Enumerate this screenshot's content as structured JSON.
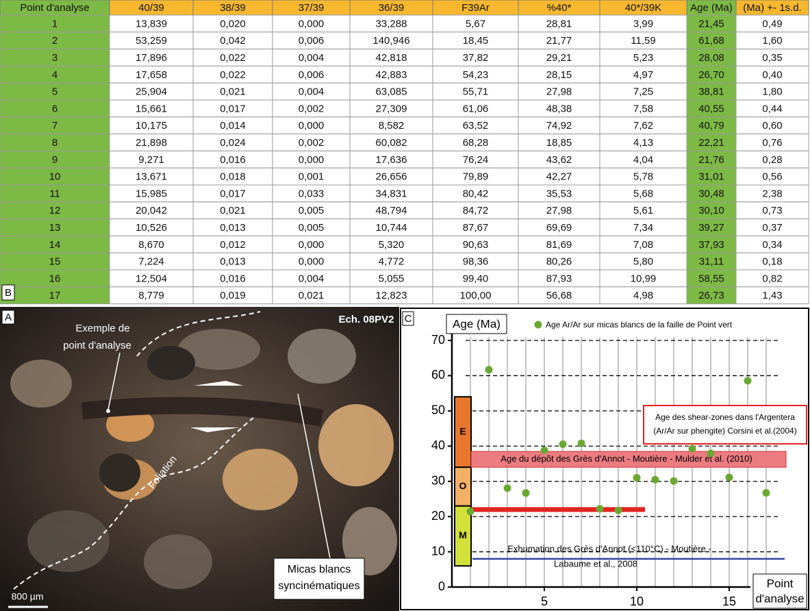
{
  "table": {
    "label": "B",
    "headers": [
      "Point d'analyse",
      "40/39",
      "38/39",
      "37/39",
      "36/39",
      "F39Ar",
      "%40*",
      "40*/39K",
      "Age (Ma)",
      "(Ma) +- 1s.d."
    ],
    "rows": [
      [
        "1",
        "13,839",
        "0,020",
        "0,000",
        "33,288",
        "5,67",
        "28,81",
        "3,99",
        "21,45",
        "0,49"
      ],
      [
        "2",
        "53,259",
        "0,042",
        "0,006",
        "140,946",
        "18,45",
        "21,77",
        "11,59",
        "61,68",
        "1,60"
      ],
      [
        "3",
        "17,896",
        "0,022",
        "0,004",
        "42,818",
        "37,82",
        "29,21",
        "5,23",
        "28,08",
        "0,35"
      ],
      [
        "4",
        "17,658",
        "0,022",
        "0,006",
        "42,883",
        "54,23",
        "28,15",
        "4,97",
        "26,70",
        "0,40"
      ],
      [
        "5",
        "25,904",
        "0,021",
        "0,004",
        "63,085",
        "55,71",
        "27,98",
        "7,25",
        "38,81",
        "1,80"
      ],
      [
        "6",
        "15,661",
        "0,017",
        "0,002",
        "27,309",
        "61,06",
        "48,38",
        "7,58",
        "40,55",
        "0,44"
      ],
      [
        "7",
        "10,175",
        "0,014",
        "0,000",
        "8,582",
        "63,52",
        "74,92",
        "7,62",
        "40,79",
        "0,60"
      ],
      [
        "8",
        "21,898",
        "0,024",
        "0,002",
        "60,082",
        "68,28",
        "18,85",
        "4,13",
        "22,21",
        "0,76"
      ],
      [
        "9",
        "9,271",
        "0,016",
        "0,000",
        "17,636",
        "76,24",
        "43,62",
        "4,04",
        "21,76",
        "0,28"
      ],
      [
        "10",
        "13,671",
        "0,018",
        "0,001",
        "26,656",
        "79,89",
        "42,27",
        "5,78",
        "31,01",
        "0,56"
      ],
      [
        "11",
        "15,985",
        "0,017",
        "0,033",
        "34,831",
        "80,42",
        "35,53",
        "5,68",
        "30,48",
        "2,38"
      ],
      [
        "12",
        "20,042",
        "0,021",
        "0,005",
        "48,794",
        "84,72",
        "27,98",
        "5,61",
        "30,10",
        "0,73"
      ],
      [
        "13",
        "10,526",
        "0,013",
        "0,005",
        "10,744",
        "87,67",
        "69,69",
        "7,34",
        "39,27",
        "0,37"
      ],
      [
        "14",
        "8,670",
        "0,012",
        "0,000",
        "5,320",
        "90,63",
        "81,69",
        "7,08",
        "37,93",
        "0,34"
      ],
      [
        "15",
        "7,224",
        "0,013",
        "0,000",
        "4,772",
        "98,36",
        "80,26",
        "5,80",
        "31,11",
        "0,18"
      ],
      [
        "16",
        "12,504",
        "0,016",
        "0,004",
        "5,055",
        "99,40",
        "87,93",
        "10,99",
        "58,55",
        "0,82"
      ],
      [
        "17",
        "8,779",
        "0,019",
        "0,021",
        "12,823",
        "100,00",
        "56,68",
        "4,98",
        "26,73",
        "1,43"
      ]
    ]
  },
  "photo": {
    "label": "A",
    "sample": "Ech. 08PV2",
    "point_label": [
      "Exemple de",
      "point d'analyse"
    ],
    "foliation": "Foliation",
    "micas": [
      "Micas blancs",
      "syncinématiques"
    ],
    "scale": "800 µm"
  },
  "chart_data": {
    "type": "scatter",
    "panel": "C",
    "y_label": "Age (Ma)",
    "x_label": [
      "Point",
      "d'analyse"
    ],
    "series": [
      {
        "name": "Age Ar/Ar sur micas blancs de la faille de Point vert",
        "color": "#6aa833",
        "x": [
          1,
          2,
          3,
          4,
          5,
          6,
          7,
          8,
          9,
          10,
          11,
          12,
          13,
          14,
          15,
          16,
          17
        ],
        "values": [
          21.45,
          61.68,
          28.08,
          26.7,
          38.81,
          40.55,
          40.79,
          22.21,
          21.76,
          31.01,
          30.48,
          30.1,
          39.27,
          37.93,
          31.11,
          58.55,
          26.73
        ]
      }
    ],
    "xlim": [
      0,
      18
    ],
    "ylim": [
      0,
      70
    ],
    "xticks": [
      5,
      10,
      15
    ],
    "yticks": [
      0,
      10,
      20,
      30,
      40,
      50,
      60,
      70
    ],
    "grid": true,
    "bands": [
      {
        "label": "E",
        "from": 34,
        "to": 54,
        "color": "#e8772e"
      },
      {
        "label": "O",
        "from": 23,
        "to": 34,
        "color": "#f2b066"
      },
      {
        "label": "M",
        "from": 6,
        "to": 23,
        "color": "#d4e03a"
      }
    ],
    "annotations": [
      {
        "lines": [
          "Age du dépôt des Grès d'Annot - Moutière - Mulder et al. (2010)"
        ],
        "from": 34,
        "to": 38.5,
        "color": "#ec7c80"
      },
      {
        "lines": [
          "Age des shear-zones dans l'Argentera",
          "(Ar/Ar sur phengite) Corsini et al.(2004)"
        ],
        "value": 22,
        "color": "#e3231f"
      },
      {
        "lines": [
          "Exhumation des Grès d'Annot (<110°C) - Moutière -",
          "Labaume et al., 2008"
        ],
        "value": 8,
        "color": "#2f45a0"
      }
    ]
  }
}
